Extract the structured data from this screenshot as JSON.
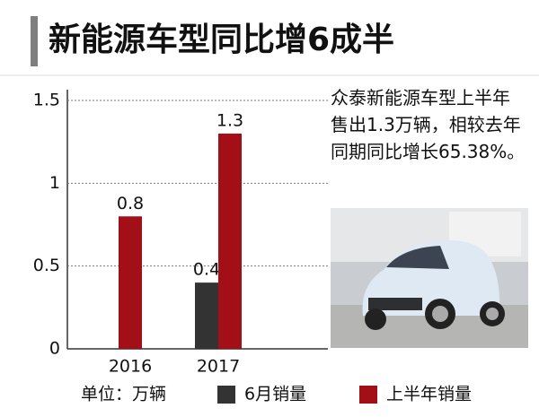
{
  "chart_data": {
    "type": "bar",
    "title": "新能源车型同比增6成半",
    "annotation": "众泰新能源车型上半年售出1.3万辆，相较去年同期同比增长65.38%。",
    "unit_label": "单位：万辆",
    "categories": [
      "2016",
      "2017"
    ],
    "series": [
      {
        "name": "6月销量",
        "color": "#333333",
        "values": [
          null,
          0.4
        ]
      },
      {
        "name": "上半年销量",
        "color": "#a30f16",
        "values": [
          0.8,
          1.3
        ]
      }
    ],
    "ylim": [
      0,
      1.5
    ],
    "yticks": [
      0,
      0.5,
      1,
      1.5
    ],
    "grid": true,
    "legend": "bottom"
  }
}
